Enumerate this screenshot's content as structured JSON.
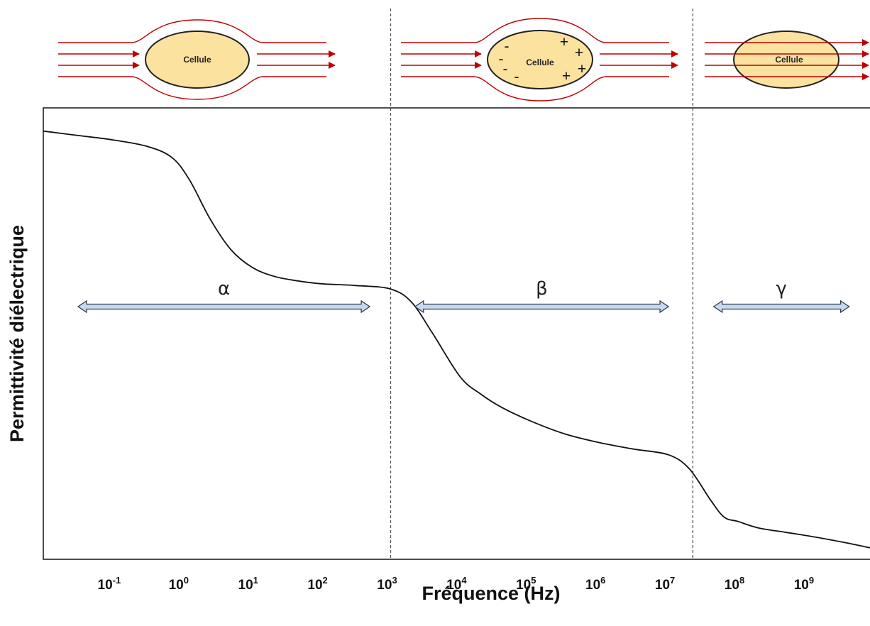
{
  "chart_data": {
    "type": "line",
    "xlabel": "Fréquence (Hz)",
    "ylabel": "Permittivité diélectrique",
    "xscale": "log",
    "xlim_log10": [
      -2.0,
      9.9
    ],
    "ylim": [
      0,
      1
    ],
    "y_ticks_shown": false,
    "grid": false,
    "x_ticks": [
      {
        "base": "10",
        "exp": "-1",
        "log": -1
      },
      {
        "base": "10",
        "exp": "0",
        "log": 0
      },
      {
        "base": "10",
        "exp": "1",
        "log": 1
      },
      {
        "base": "10",
        "exp": "2",
        "log": 2
      },
      {
        "base": "10",
        "exp": "3",
        "log": 3
      },
      {
        "base": "10",
        "exp": "4",
        "log": 4
      },
      {
        "base": "10",
        "exp": "5",
        "log": 5
      },
      {
        "base": "10",
        "exp": "6",
        "log": 6
      },
      {
        "base": "10",
        "exp": "7",
        "log": 7
      },
      {
        "base": "10",
        "exp": "8",
        "log": 8
      },
      {
        "base": "10",
        "exp": "9",
        "log": 9
      }
    ],
    "series": [
      {
        "color": "#111111",
        "x_log10": [
          -2.0,
          -1.5,
          -1.0,
          -0.5,
          -0.15,
          0.1,
          0.4,
          0.7,
          1.0,
          1.3,
          1.6,
          2.0,
          2.5,
          3.0,
          3.3,
          3.6,
          4.0,
          4.3,
          4.6,
          5.0,
          5.5,
          6.0,
          6.5,
          7.0,
          7.3,
          7.6,
          7.8,
          8.0,
          8.3,
          8.7,
          9.2,
          9.6,
          9.9
        ],
        "values": [
          0.96,
          0.95,
          0.94,
          0.925,
          0.9,
          0.85,
          0.76,
          0.69,
          0.65,
          0.63,
          0.62,
          0.612,
          0.608,
          0.6,
          0.57,
          0.5,
          0.4,
          0.36,
          0.33,
          0.3,
          0.27,
          0.25,
          0.235,
          0.222,
          0.19,
          0.12,
          0.08,
          0.07,
          0.055,
          0.045,
          0.032,
          0.02,
          0.01
        ]
      }
    ],
    "dividers_log10": [
      3.0,
      7.35
    ],
    "bands": [
      {
        "label": "α",
        "from_log10": -1.5,
        "to_log10": 2.7
      },
      {
        "label": "β",
        "from_log10": 3.35,
        "to_log10": 7.0
      },
      {
        "label": "γ",
        "from_log10": 7.65,
        "to_log10": 9.6
      }
    ],
    "colors": {
      "curve": "#111111",
      "divider": "#555555",
      "field_line": "#c00000",
      "cell_fill": "#fbe29f",
      "band_arrow_fill": "#c8d8ee",
      "band_arrow_stroke": "#2f3e55"
    }
  },
  "cells": [
    {
      "label": "Cellule",
      "charges": []
    },
    {
      "label": "Cellule",
      "charges": [
        "-",
        "-",
        "-",
        "-",
        "+",
        "+",
        "+",
        "+"
      ]
    },
    {
      "label": "Cellule",
      "charges": []
    }
  ]
}
